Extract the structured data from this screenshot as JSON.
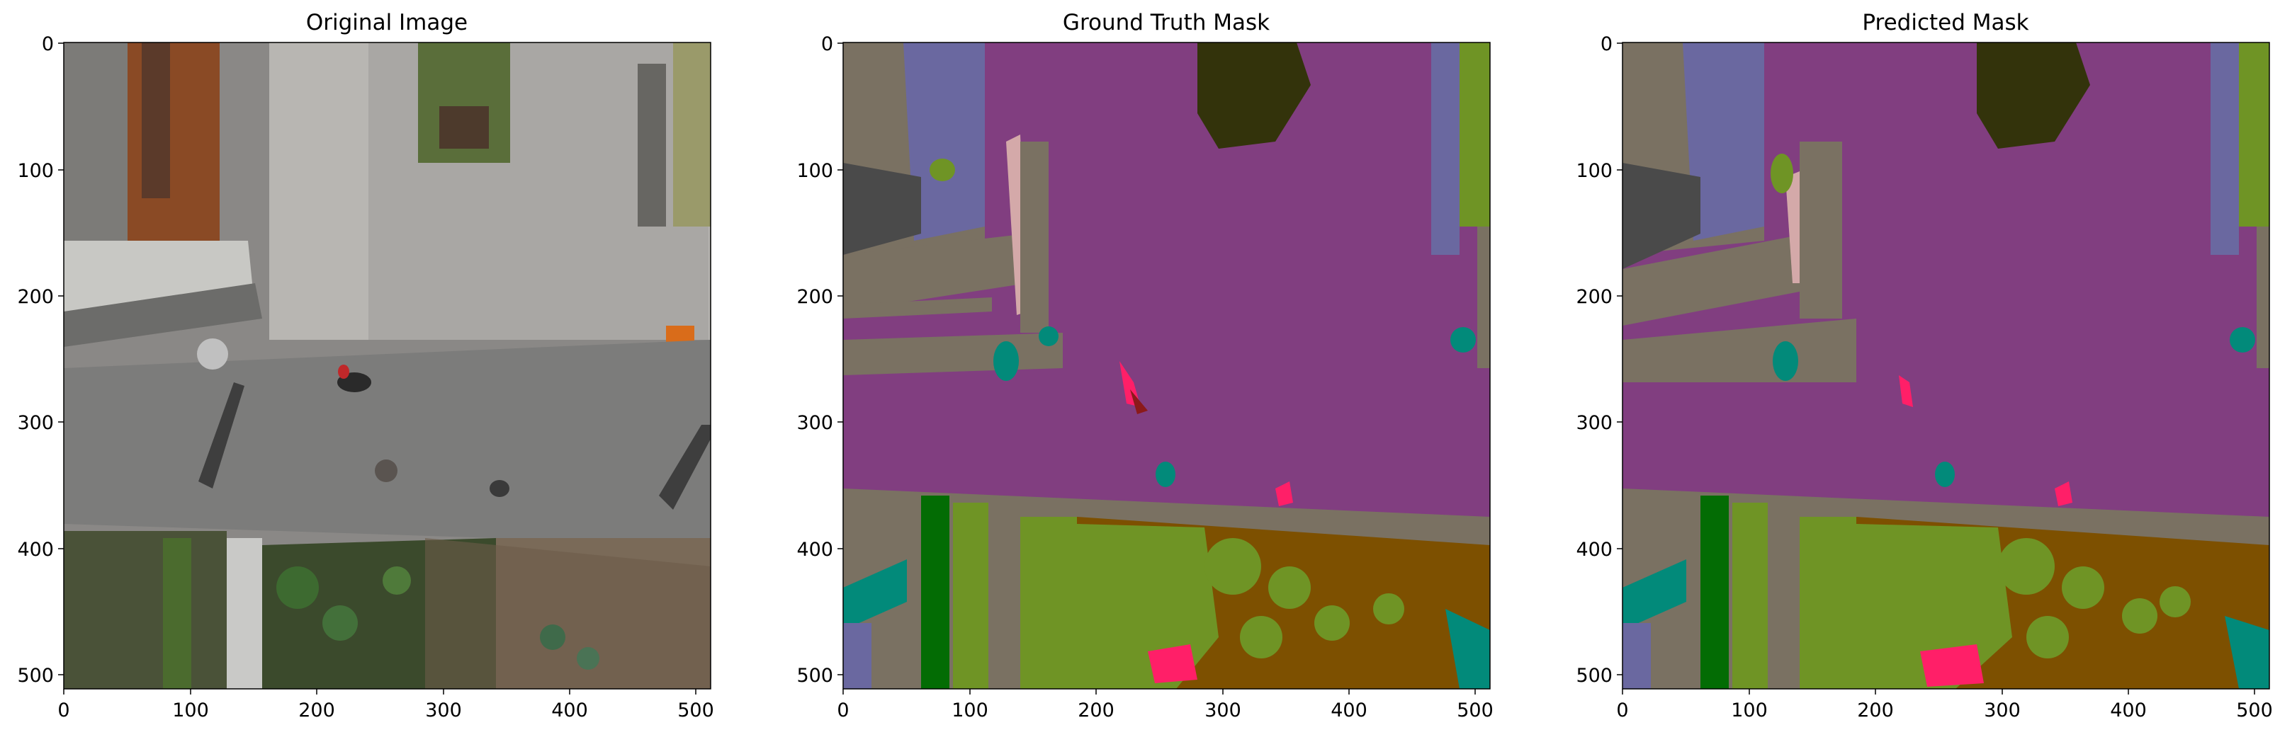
{
  "panels": [
    {
      "title": "Original Image",
      "kind": "photo"
    },
    {
      "title": "Ground Truth Mask",
      "kind": "mask"
    },
    {
      "title": "Predicted Mask",
      "kind": "mask"
    }
  ],
  "axes": {
    "x_ticks": [
      "0",
      "100",
      "200",
      "300",
      "400",
      "500"
    ],
    "y_ticks": [
      "0",
      "100",
      "200",
      "300",
      "400",
      "500"
    ],
    "range": [
      0,
      512
    ]
  },
  "colors": {
    "road": "#813e80",
    "sidewalk_gray": "#7a7162",
    "roof_blue": "#6a68a0",
    "dark_roof": "#4a4a4a",
    "vegetation": "#6f9425",
    "soil": "#7d5000",
    "dark_green": "#036c04",
    "tree_dark": "#33330b",
    "teal": "#028a7a",
    "pink_person": "#ff1f68",
    "light_pink": "#d4a9a9"
  }
}
